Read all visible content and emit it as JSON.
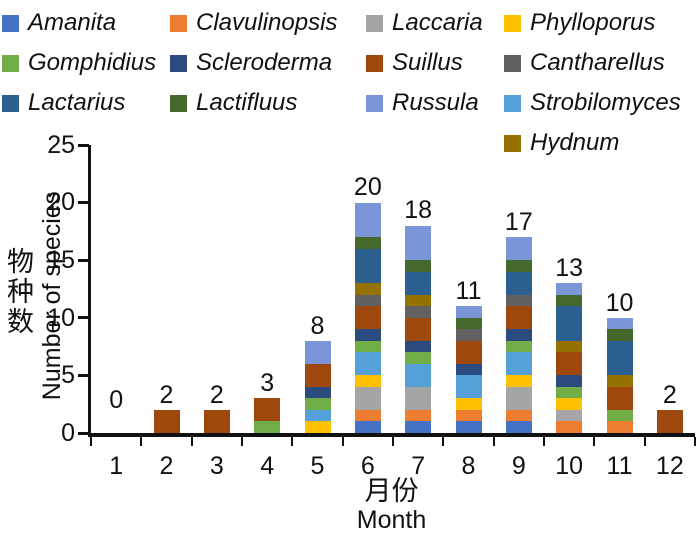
{
  "axes_note": "stacked bar chart of macrofungal genera richness per month",
  "chart_data": {
    "type": "bar",
    "stacked": true,
    "title": "",
    "grid": false,
    "legend_position": "top",
    "categories": [
      "1",
      "2",
      "3",
      "4",
      "5",
      "6",
      "7",
      "8",
      "9",
      "10",
      "11",
      "12"
    ],
    "xlabel_zh": "月份",
    "xlabel_en": "Month",
    "ylabel_zh": "物种数",
    "ylabel_en": "Number of species",
    "ylim": [
      0,
      25
    ],
    "y_ticks": [
      0,
      5,
      10,
      15,
      20,
      25
    ],
    "totals": [
      0,
      2,
      2,
      3,
      8,
      20,
      18,
      11,
      17,
      13,
      10,
      2
    ],
    "legend_rows": [
      [
        "Amanita",
        "Clavulinopsis",
        "Laccaria",
        "Phylloporus"
      ],
      [
        "Gomphidius",
        "Scleroderma",
        "Suillus",
        "Cantharellus"
      ],
      [
        "Lactarius",
        "Lactifluus",
        "Russula",
        "Strobilomyces"
      ],
      [
        null,
        null,
        null,
        "Hydnum"
      ]
    ],
    "series": [
      {
        "name": "Amanita",
        "color": "#4472C4",
        "values": [
          0,
          0,
          0,
          0,
          0,
          1,
          1,
          1,
          1,
          0,
          0,
          0
        ]
      },
      {
        "name": "Clavulinopsis",
        "color": "#ED7D31",
        "values": [
          0,
          0,
          0,
          0,
          0,
          1,
          1,
          1,
          1,
          1,
          1,
          0
        ]
      },
      {
        "name": "Laccaria",
        "color": "#A5A5A5",
        "values": [
          0,
          0,
          0,
          0,
          0,
          2,
          2,
          0,
          2,
          1,
          0,
          0
        ]
      },
      {
        "name": "Phylloporus",
        "color": "#FFC000",
        "values": [
          0,
          0,
          0,
          0,
          1,
          1,
          0,
          1,
          1,
          1,
          0,
          0
        ]
      },
      {
        "name": "Strobilomyces",
        "color": "#56A0DA",
        "values": [
          0,
          0,
          0,
          0,
          1,
          2,
          2,
          2,
          2,
          0,
          0,
          0
        ]
      },
      {
        "name": "Gomphidius",
        "color": "#70AD47",
        "values": [
          0,
          0,
          0,
          1,
          1,
          1,
          1,
          0,
          1,
          1,
          1,
          0
        ]
      },
      {
        "name": "Scleroderma",
        "color": "#2C4B7E",
        "values": [
          0,
          0,
          0,
          0,
          1,
          1,
          1,
          1,
          1,
          1,
          0,
          0
        ]
      },
      {
        "name": "Suillus",
        "color": "#9E480E",
        "values": [
          0,
          2,
          2,
          2,
          2,
          2,
          2,
          2,
          2,
          2,
          2,
          2
        ]
      },
      {
        "name": "Cantharellus",
        "color": "#616161",
        "values": [
          0,
          0,
          0,
          0,
          0,
          1,
          1,
          1,
          1,
          0,
          0,
          0
        ]
      },
      {
        "name": "Hydnum",
        "color": "#957100",
        "values": [
          0,
          0,
          0,
          0,
          0,
          1,
          1,
          0,
          0,
          1,
          1,
          0
        ]
      },
      {
        "name": "Lactarius",
        "color": "#2A5F8F",
        "values": [
          0,
          0,
          0,
          0,
          0,
          3,
          2,
          0,
          2,
          3,
          3,
          0
        ]
      },
      {
        "name": "Lactifluus",
        "color": "#45682C",
        "values": [
          0,
          0,
          0,
          0,
          0,
          1,
          1,
          1,
          1,
          1,
          1,
          0
        ]
      },
      {
        "name": "Russula",
        "color": "#7A96D7",
        "values": [
          0,
          0,
          0,
          0,
          2,
          3,
          3,
          1,
          2,
          1,
          1,
          0
        ]
      }
    ]
  }
}
